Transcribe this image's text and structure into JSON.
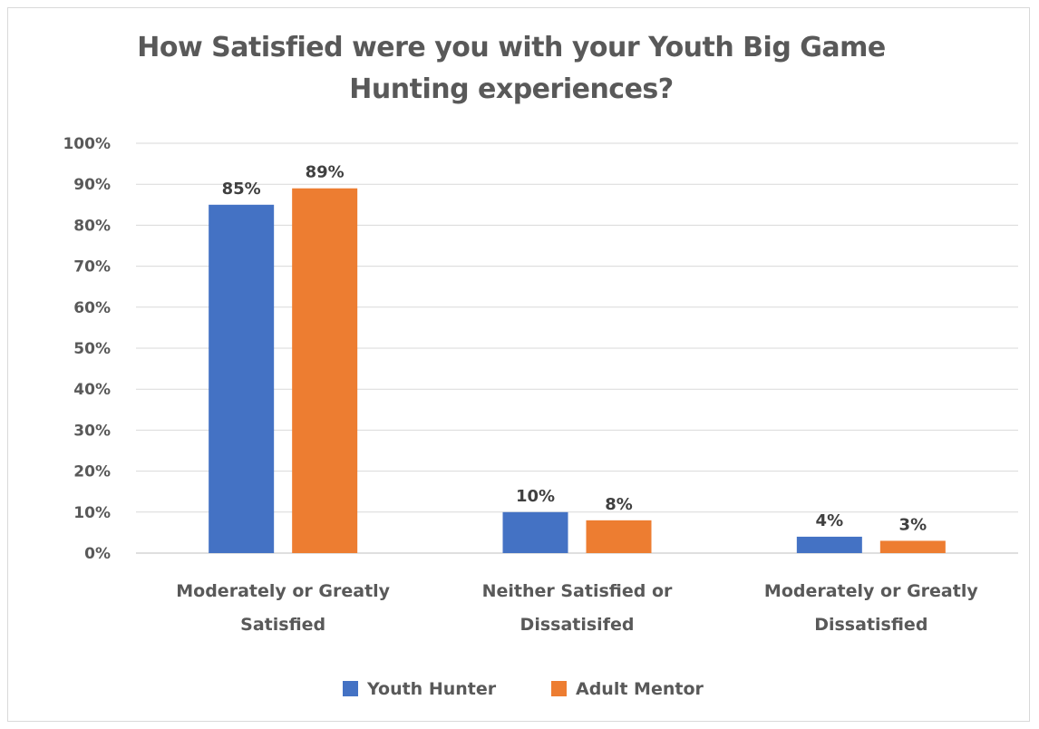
{
  "chart_data": {
    "type": "bar",
    "title": "How Satisfied were you with your Youth Big Game\nHunting experiences?",
    "categories": [
      [
        "Moderately or Greatly",
        "Satisfied"
      ],
      [
        "Neither Satisfied or",
        "Dissatisifed"
      ],
      [
        "Moderately or Greatly",
        "Dissatisfied"
      ]
    ],
    "series": [
      {
        "name": "Youth Hunter",
        "color": "#4472c4",
        "values": [
          85,
          10,
          4
        ],
        "labels": [
          "85%",
          "10%",
          "4%"
        ]
      },
      {
        "name": "Adult Mentor",
        "color": "#ed7d31",
        "values": [
          89,
          8,
          3
        ],
        "labels": [
          "89%",
          "8%",
          "3%"
        ]
      }
    ],
    "ylim": [
      0,
      100
    ],
    "yticks": [
      "0%",
      "10%",
      "20%",
      "30%",
      "40%",
      "50%",
      "60%",
      "70%",
      "80%",
      "90%",
      "100%"
    ],
    "grid": true,
    "legend_position": "bottom"
  }
}
